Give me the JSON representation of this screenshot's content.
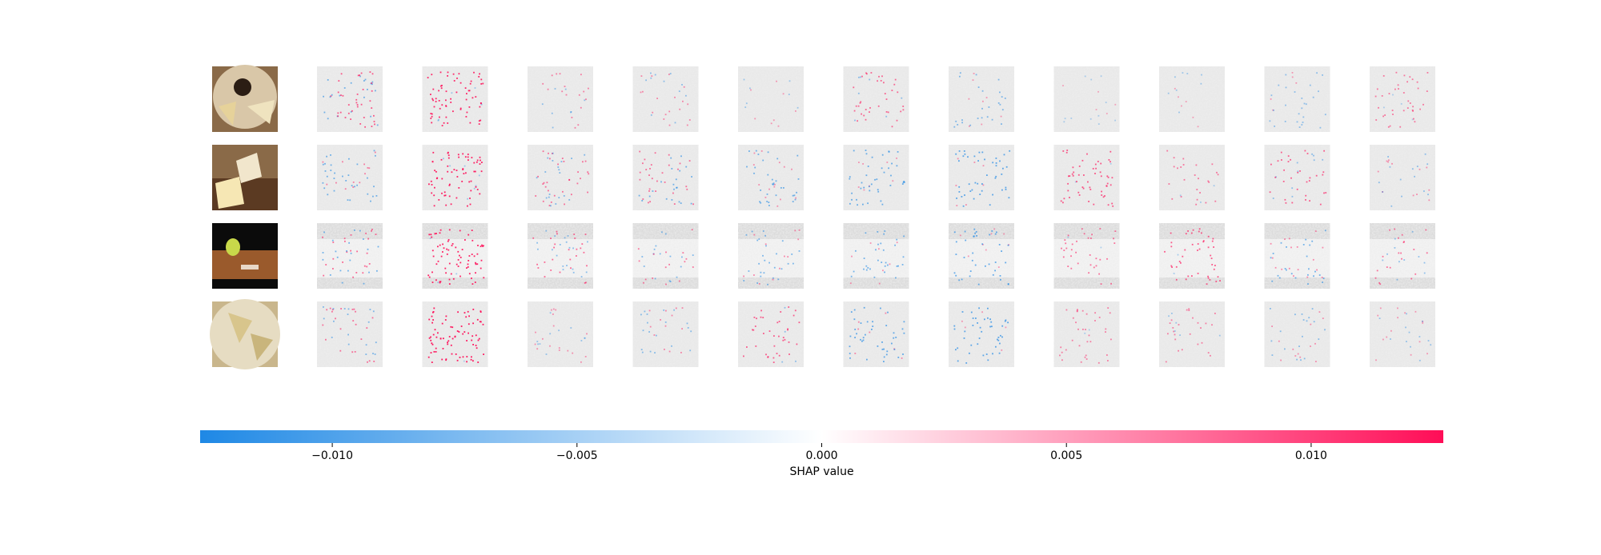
{
  "chart_data": {
    "type": "heatmap",
    "title": "",
    "rows": 4,
    "output_columns": 11,
    "input_images": [
      {
        "depiction": "cheese-plate-with-dip-and-wedges",
        "palette": "warm-brown"
      },
      {
        "depiction": "cheese-wedges-on-wooden-board",
        "palette": "warm-brown"
      },
      {
        "depiction": "cheese-and-glass-on-wooden-table",
        "palette": "dark"
      },
      {
        "depiction": "cheese-pieces-on-plate",
        "palette": "beige"
      }
    ],
    "colorbar": {
      "label": "SHAP value",
      "range": [
        -0.0127,
        0.0127
      ],
      "ticks": [
        -0.01,
        -0.005,
        0.0,
        0.005,
        0.01
      ],
      "tick_labels": [
        "−0.010",
        "−0.005",
        "0.000",
        "0.005",
        "0.010"
      ],
      "negative_color": "#1e88e5",
      "zero_color": "#ffffff",
      "positive_color": "#ff0d57"
    },
    "shap_intensity": [
      [
        [
          0.0,
          0.5,
          0.6
        ],
        [
          0.0,
          0.2,
          0.9
        ],
        [
          0.35,
          0.3,
          0.35
        ],
        [
          0.3,
          0.3,
          0.3
        ],
        [
          0.2,
          0.2,
          0.2
        ],
        [
          0.3,
          0.3,
          0.5
        ],
        [
          0.3,
          0.4,
          0.2
        ],
        [
          0.1,
          0.1,
          0.1
        ],
        [
          0.1,
          0.2,
          0.15
        ],
        [
          0.3,
          0.3,
          0.2
        ],
        [
          0.1,
          0.1,
          0.4
        ]
      ],
      [
        [
          0.0,
          0.5,
          0.35
        ],
        [
          0.0,
          0.2,
          0.95
        ],
        [
          0.25,
          0.4,
          0.45
        ],
        [
          0.35,
          0.5,
          0.45
        ],
        [
          0.4,
          0.5,
          0.25
        ],
        [
          0.4,
          0.55,
          0.2
        ],
        [
          0.2,
          0.65,
          0.25
        ],
        [
          0.05,
          0.1,
          0.6
        ],
        [
          0.1,
          0.15,
          0.4
        ],
        [
          0.15,
          0.3,
          0.55
        ],
        [
          0.1,
          0.3,
          0.25
        ]
      ],
      [
        [
          0.0,
          0.5,
          0.5
        ],
        [
          0.0,
          0.15,
          0.95
        ],
        [
          0.3,
          0.35,
          0.5
        ],
        [
          0.3,
          0.4,
          0.4
        ],
        [
          0.25,
          0.45,
          0.3
        ],
        [
          0.3,
          0.5,
          0.25
        ],
        [
          0.35,
          0.6,
          0.2
        ],
        [
          0.2,
          0.1,
          0.45
        ],
        [
          0.2,
          0.15,
          0.6
        ],
        [
          0.25,
          0.5,
          0.3
        ],
        [
          0.15,
          0.3,
          0.45
        ]
      ],
      [
        [
          0.0,
          0.4,
          0.45
        ],
        [
          0.0,
          0.1,
          1.0
        ],
        [
          0.25,
          0.25,
          0.25
        ],
        [
          0.3,
          0.35,
          0.3
        ],
        [
          0.3,
          0.3,
          0.55
        ],
        [
          0.25,
          0.6,
          0.3
        ],
        [
          0.3,
          0.65,
          0.2
        ],
        [
          0.15,
          0.1,
          0.35
        ],
        [
          0.15,
          0.2,
          0.35
        ],
        [
          0.3,
          0.35,
          0.25
        ],
        [
          0.2,
          0.25,
          0.2
        ]
      ]
    ]
  }
}
